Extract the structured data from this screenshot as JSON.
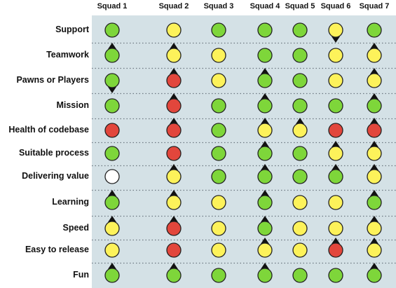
{
  "squads": [
    "Squad 1",
    "Squad 2",
    "Squad 3",
    "Squad 4",
    "Squad 5",
    "Squad 6",
    "Squad 7"
  ],
  "colors": {
    "green": "#7ed63a",
    "yellow": "#fdf25a",
    "red": "#e2463c",
    "white": "#ffffff",
    "background": "#d4e1e6"
  },
  "rows": [
    {
      "label": "Support",
      "cells": [
        [
          "green",
          "none"
        ],
        [
          "yellow",
          "none"
        ],
        [
          "green",
          "none"
        ],
        [
          "green",
          "none"
        ],
        [
          "green",
          "none"
        ],
        [
          "yellow",
          "down"
        ],
        [
          "green",
          "none"
        ]
      ]
    },
    {
      "label": "Teamwork",
      "cells": [
        [
          "green",
          "up"
        ],
        [
          "yellow",
          "up"
        ],
        [
          "yellow",
          "none"
        ],
        [
          "green",
          "none"
        ],
        [
          "green",
          "none"
        ],
        [
          "yellow",
          "none"
        ],
        [
          "yellow",
          "up"
        ]
      ]
    },
    {
      "label": "Pawns or Players",
      "cells": [
        [
          "green",
          "down"
        ],
        [
          "red",
          "up"
        ],
        [
          "yellow",
          "none"
        ],
        [
          "green",
          "up"
        ],
        [
          "green",
          "none"
        ],
        [
          "yellow",
          "none"
        ],
        [
          "yellow",
          "up"
        ]
      ]
    },
    {
      "label": "Mission",
      "cells": [
        [
          "green",
          "none"
        ],
        [
          "red",
          "up"
        ],
        [
          "green",
          "none"
        ],
        [
          "green",
          "up"
        ],
        [
          "green",
          "none"
        ],
        [
          "green",
          "none"
        ],
        [
          "green",
          "up"
        ]
      ]
    },
    {
      "label": "Health of codebase",
      "cells": [
        [
          "red",
          "none"
        ],
        [
          "red",
          "up"
        ],
        [
          "green",
          "none"
        ],
        [
          "yellow",
          "up"
        ],
        [
          "yellow",
          "up"
        ],
        [
          "red",
          "none"
        ],
        [
          "red",
          "up"
        ]
      ]
    },
    {
      "label": "Suitable process",
      "cells": [
        [
          "green",
          "none"
        ],
        [
          "red",
          "none"
        ],
        [
          "green",
          "none"
        ],
        [
          "green",
          "up"
        ],
        [
          "green",
          "none"
        ],
        [
          "yellow",
          "up"
        ],
        [
          "yellow",
          "up"
        ]
      ]
    },
    {
      "label": "Delivering value",
      "cells": [
        [
          "white",
          "none"
        ],
        [
          "yellow",
          "up"
        ],
        [
          "green",
          "none"
        ],
        [
          "green",
          "up"
        ],
        [
          "green",
          "none"
        ],
        [
          "green",
          "up"
        ],
        [
          "yellow",
          "up"
        ]
      ]
    },
    {
      "label": "Learning",
      "cells": [
        [
          "green",
          "up"
        ],
        [
          "yellow",
          "up"
        ],
        [
          "yellow",
          "none"
        ],
        [
          "green",
          "up"
        ],
        [
          "yellow",
          "none"
        ],
        [
          "yellow",
          "none"
        ],
        [
          "green",
          "up"
        ]
      ]
    },
    {
      "label": "Speed",
      "cells": [
        [
          "yellow",
          "up"
        ],
        [
          "red",
          "up"
        ],
        [
          "yellow",
          "none"
        ],
        [
          "green",
          "up"
        ],
        [
          "yellow",
          "none"
        ],
        [
          "yellow",
          "none"
        ],
        [
          "yellow",
          "up"
        ]
      ]
    },
    {
      "label": "Easy to release",
      "cells": [
        [
          "yellow",
          "none"
        ],
        [
          "red",
          "none"
        ],
        [
          "yellow",
          "none"
        ],
        [
          "yellow",
          "up"
        ],
        [
          "yellow",
          "none"
        ],
        [
          "red",
          "up"
        ],
        [
          "yellow",
          "up"
        ]
      ]
    },
    {
      "label": "Fun",
      "cells": [
        [
          "green",
          "up"
        ],
        [
          "green",
          "up"
        ],
        [
          "green",
          "none"
        ],
        [
          "green",
          "up"
        ],
        [
          "green",
          "none"
        ],
        [
          "green",
          "none"
        ],
        [
          "green",
          "up"
        ]
      ]
    }
  ]
}
